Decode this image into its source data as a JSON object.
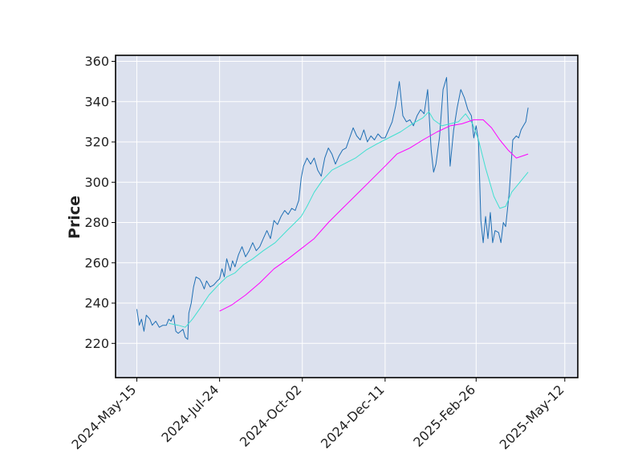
{
  "chart_data": {
    "type": "line",
    "title": "",
    "xlabel": "",
    "ylabel": "Price",
    "x_tick_labels": [
      "2024-May-15",
      "2024-Jul-24",
      "2024-Oct-02",
      "2024-Dec-11",
      "2025-Feb-26",
      "2025-May-12"
    ],
    "x_tick_dates": [
      "2024-05-15",
      "2024-07-24",
      "2024-10-02",
      "2024-12-11",
      "2025-02-26",
      "2025-05-12"
    ],
    "x_range": [
      "2024-04-27",
      "2025-05-23"
    ],
    "ylim": [
      203,
      363
    ],
    "y_ticks": [
      220,
      240,
      260,
      280,
      300,
      320,
      340,
      360
    ],
    "grid": true,
    "legend": "none",
    "colors": {
      "background": "#dce1ee",
      "grid": "#ffffff",
      "price": "#1f6fb4",
      "fast_ma": "#40e0d0",
      "slow_ma": "#ff00ff"
    },
    "series": [
      {
        "key": "price",
        "points": [
          [
            "2024-05-15",
            237
          ],
          [
            "2024-05-17",
            229
          ],
          [
            "2024-05-19",
            232
          ],
          [
            "2024-05-21",
            226
          ],
          [
            "2024-05-23",
            234
          ],
          [
            "2024-05-26",
            232
          ],
          [
            "2024-05-28",
            229
          ],
          [
            "2024-05-31",
            231
          ],
          [
            "2024-06-03",
            228
          ],
          [
            "2024-06-06",
            229
          ],
          [
            "2024-06-09",
            229
          ],
          [
            "2024-06-11",
            232
          ],
          [
            "2024-06-13",
            231
          ],
          [
            "2024-06-15",
            234
          ],
          [
            "2024-06-17",
            226
          ],
          [
            "2024-06-19",
            225
          ],
          [
            "2024-06-21",
            226
          ],
          [
            "2024-06-23",
            227
          ],
          [
            "2024-06-25",
            223
          ],
          [
            "2024-06-27",
            222
          ],
          [
            "2024-06-28",
            235
          ],
          [
            "2024-06-30",
            240
          ],
          [
            "2024-07-02",
            248
          ],
          [
            "2024-07-04",
            253
          ],
          [
            "2024-07-07",
            252
          ],
          [
            "2024-07-09",
            250
          ],
          [
            "2024-07-11",
            247
          ],
          [
            "2024-07-13",
            251
          ],
          [
            "2024-07-16",
            248
          ],
          [
            "2024-07-19",
            249
          ],
          [
            "2024-07-22",
            251
          ],
          [
            "2024-07-24",
            252
          ],
          [
            "2024-07-26",
            257
          ],
          [
            "2024-07-28",
            253
          ],
          [
            "2024-07-30",
            262
          ],
          [
            "2024-08-02",
            256
          ],
          [
            "2024-08-04",
            261
          ],
          [
            "2024-08-06",
            258
          ],
          [
            "2024-08-09",
            264
          ],
          [
            "2024-08-12",
            268
          ],
          [
            "2024-08-15",
            263
          ],
          [
            "2024-08-18",
            266
          ],
          [
            "2024-08-21",
            270
          ],
          [
            "2024-08-24",
            266
          ],
          [
            "2024-08-27",
            268
          ],
          [
            "2024-08-30",
            272
          ],
          [
            "2024-09-02",
            276
          ],
          [
            "2024-09-05",
            272
          ],
          [
            "2024-09-08",
            281
          ],
          [
            "2024-09-11",
            279
          ],
          [
            "2024-09-14",
            283
          ],
          [
            "2024-09-17",
            286
          ],
          [
            "2024-09-20",
            284
          ],
          [
            "2024-09-23",
            287
          ],
          [
            "2024-09-26",
            286
          ],
          [
            "2024-09-29",
            291
          ],
          [
            "2024-10-01",
            302
          ],
          [
            "2024-10-03",
            308
          ],
          [
            "2024-10-06",
            312
          ],
          [
            "2024-10-09",
            309
          ],
          [
            "2024-10-12",
            312
          ],
          [
            "2024-10-15",
            306
          ],
          [
            "2024-10-18",
            303
          ],
          [
            "2024-10-21",
            312
          ],
          [
            "2024-10-24",
            317
          ],
          [
            "2024-10-27",
            314
          ],
          [
            "2024-10-30",
            309
          ],
          [
            "2024-11-02",
            313
          ],
          [
            "2024-11-05",
            316
          ],
          [
            "2024-11-08",
            317
          ],
          [
            "2024-11-11",
            322
          ],
          [
            "2024-11-14",
            327
          ],
          [
            "2024-11-17",
            323
          ],
          [
            "2024-11-20",
            321
          ],
          [
            "2024-11-23",
            326
          ],
          [
            "2024-11-26",
            320
          ],
          [
            "2024-11-29",
            323
          ],
          [
            "2024-12-02",
            321
          ],
          [
            "2024-12-05",
            324
          ],
          [
            "2024-12-08",
            322
          ],
          [
            "2024-12-11",
            322
          ],
          [
            "2024-12-14",
            326
          ],
          [
            "2024-12-17",
            330
          ],
          [
            "2024-12-20",
            338
          ],
          [
            "2024-12-23",
            350
          ],
          [
            "2024-12-26",
            333
          ],
          [
            "2024-12-29",
            330
          ],
          [
            "2025-01-01",
            331
          ],
          [
            "2025-01-04",
            328
          ],
          [
            "2025-01-07",
            333
          ],
          [
            "2025-01-10",
            336
          ],
          [
            "2025-01-13",
            334
          ],
          [
            "2025-01-16",
            346
          ],
          [
            "2025-01-19",
            316
          ],
          [
            "2025-01-21",
            305
          ],
          [
            "2025-01-23",
            309
          ],
          [
            "2025-01-26",
            322
          ],
          [
            "2025-01-29",
            346
          ],
          [
            "2025-02-01",
            352
          ],
          [
            "2025-02-04",
            308
          ],
          [
            "2025-02-07",
            326
          ],
          [
            "2025-02-10",
            337
          ],
          [
            "2025-02-13",
            346
          ],
          [
            "2025-02-16",
            342
          ],
          [
            "2025-02-19",
            336
          ],
          [
            "2025-02-22",
            333
          ],
          [
            "2025-02-24",
            322
          ],
          [
            "2025-02-26",
            328
          ],
          [
            "2025-02-28",
            320
          ],
          [
            "2025-03-02",
            281
          ],
          [
            "2025-03-04",
            270
          ],
          [
            "2025-03-06",
            283
          ],
          [
            "2025-03-08",
            272
          ],
          [
            "2025-03-10",
            285
          ],
          [
            "2025-03-12",
            270
          ],
          [
            "2025-03-14",
            276
          ],
          [
            "2025-03-17",
            275
          ],
          [
            "2025-03-19",
            270
          ],
          [
            "2025-03-21",
            280
          ],
          [
            "2025-03-23",
            278
          ],
          [
            "2025-03-26",
            295
          ],
          [
            "2025-03-29",
            321
          ],
          [
            "2025-04-01",
            323
          ],
          [
            "2025-04-03",
            322
          ],
          [
            "2025-04-05",
            326
          ],
          [
            "2025-04-07",
            328
          ],
          [
            "2025-04-09",
            330
          ],
          [
            "2025-04-11",
            337
          ]
        ]
      },
      {
        "key": "fast_ma",
        "points": [
          [
            "2024-06-11",
            230
          ],
          [
            "2024-06-19",
            229
          ],
          [
            "2024-06-25",
            228
          ],
          [
            "2024-07-01",
            232
          ],
          [
            "2024-07-07",
            237
          ],
          [
            "2024-07-15",
            244
          ],
          [
            "2024-07-23",
            249
          ],
          [
            "2024-07-30",
            253
          ],
          [
            "2024-08-06",
            255
          ],
          [
            "2024-08-13",
            259
          ],
          [
            "2024-08-21",
            262
          ],
          [
            "2024-08-30",
            266
          ],
          [
            "2024-09-09",
            270
          ],
          [
            "2024-09-19",
            276
          ],
          [
            "2024-09-26",
            280
          ],
          [
            "2024-10-01",
            283
          ],
          [
            "2024-10-06",
            288
          ],
          [
            "2024-10-12",
            295
          ],
          [
            "2024-10-19",
            301
          ],
          [
            "2024-10-27",
            306
          ],
          [
            "2024-11-06",
            309
          ],
          [
            "2024-11-16",
            312
          ],
          [
            "2024-11-25",
            316
          ],
          [
            "2024-12-04",
            319
          ],
          [
            "2024-12-14",
            322
          ],
          [
            "2024-12-24",
            325
          ],
          [
            "2025-01-03",
            329
          ],
          [
            "2025-01-12",
            332
          ],
          [
            "2025-01-17",
            335
          ],
          [
            "2025-01-21",
            331
          ],
          [
            "2025-01-28",
            328
          ],
          [
            "2025-02-04",
            329
          ],
          [
            "2025-02-11",
            330
          ],
          [
            "2025-02-17",
            334
          ],
          [
            "2025-02-23",
            329
          ],
          [
            "2025-02-28",
            321
          ],
          [
            "2025-03-06",
            307
          ],
          [
            "2025-03-13",
            293
          ],
          [
            "2025-03-18",
            287
          ],
          [
            "2025-03-23",
            288
          ],
          [
            "2025-03-28",
            295
          ],
          [
            "2025-04-04",
            300
          ],
          [
            "2025-04-11",
            305
          ]
        ]
      },
      {
        "key": "slow_ma",
        "points": [
          [
            "2024-07-24",
            236
          ],
          [
            "2024-08-03",
            239
          ],
          [
            "2024-08-15",
            244
          ],
          [
            "2024-08-27",
            250
          ],
          [
            "2024-09-08",
            257
          ],
          [
            "2024-09-20",
            262
          ],
          [
            "2024-10-01",
            267
          ],
          [
            "2024-10-12",
            272
          ],
          [
            "2024-10-24",
            280
          ],
          [
            "2024-11-05",
            287
          ],
          [
            "2024-11-17",
            294
          ],
          [
            "2024-11-29",
            301
          ],
          [
            "2024-12-11",
            308
          ],
          [
            "2024-12-21",
            314
          ],
          [
            "2025-01-01",
            317
          ],
          [
            "2025-01-12",
            321
          ],
          [
            "2025-01-24",
            325
          ],
          [
            "2025-02-04",
            328
          ],
          [
            "2025-02-14",
            329
          ],
          [
            "2025-02-24",
            331
          ],
          [
            "2025-03-04",
            331
          ],
          [
            "2025-03-11",
            327
          ],
          [
            "2025-03-18",
            321
          ],
          [
            "2025-03-25",
            316
          ],
          [
            "2025-04-01",
            312
          ],
          [
            "2025-04-06",
            313
          ],
          [
            "2025-04-11",
            314
          ]
        ]
      }
    ]
  }
}
